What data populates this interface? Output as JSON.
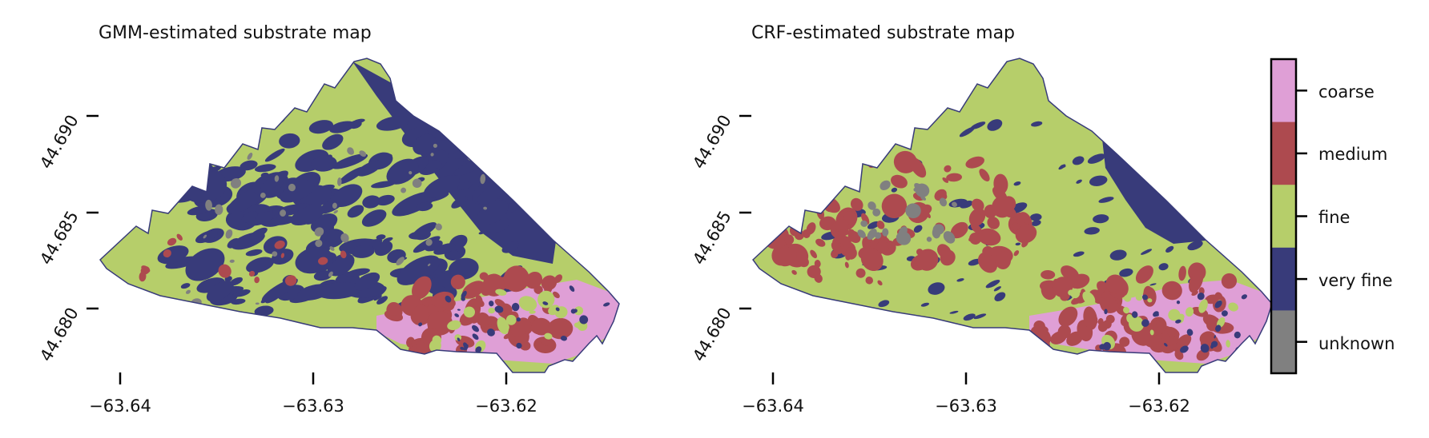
{
  "maps": [
    {
      "id": "gmm",
      "title": "GMM-estimated substrate map",
      "x_ticks": [
        "−63.64",
        "−63.63",
        "−63.62"
      ],
      "y_ticks": [
        "44.690",
        "44.685",
        "44.680"
      ]
    },
    {
      "id": "crf",
      "title": "CRF-estimated substrate map",
      "x_ticks": [
        "−63.64",
        "−63.63",
        "−63.62"
      ],
      "y_ticks": [
        "44.690",
        "44.685",
        "44.680"
      ]
    }
  ],
  "colorbar": {
    "classes": [
      {
        "label": "coarse",
        "color": "#df9fd6"
      },
      {
        "label": "medium",
        "color": "#ad4a4f"
      },
      {
        "label": "fine",
        "color": "#b6ce6a"
      },
      {
        "label": "very fine",
        "color": "#383b7a"
      },
      {
        "label": "unknown",
        "color": "#808080"
      }
    ]
  },
  "colors": {
    "outline": "#383b7a"
  }
}
